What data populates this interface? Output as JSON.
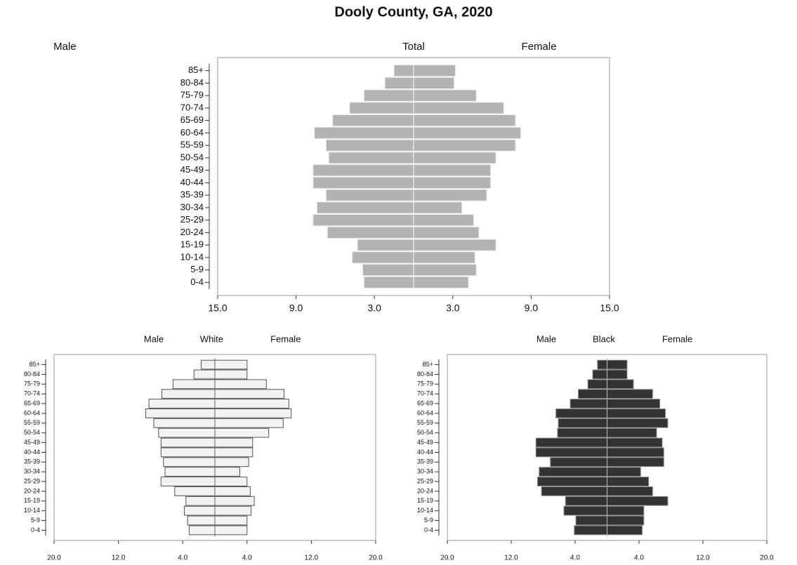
{
  "chart_data": [
    {
      "type": "pyramid",
      "title": "Dooly County, GA, 2020",
      "subtitle": "Total",
      "categories": [
        "85+",
        "80-84",
        "75-79",
        "70-74",
        "65-69",
        "60-64",
        "55-59",
        "50-54",
        "45-49",
        "40-44",
        "35-39",
        "30-34",
        "25-29",
        "20-24",
        "15-19",
        "10-14",
        "5-9",
        "0-4"
      ],
      "series": [
        {
          "name": "Male",
          "color": "#b3b3b3",
          "values": [
            1.5,
            2.2,
            3.8,
            4.9,
            6.2,
            7.6,
            6.7,
            6.5,
            7.7,
            7.7,
            6.7,
            7.4,
            7.7,
            6.6,
            4.3,
            4.7,
            3.9,
            3.8
          ]
        },
        {
          "name": "Female",
          "color": "#b3b3b3",
          "values": [
            3.2,
            3.1,
            4.8,
            6.9,
            7.8,
            8.2,
            7.8,
            6.3,
            5.9,
            5.9,
            5.6,
            3.7,
            4.6,
            5.0,
            6.3,
            4.7,
            4.8,
            4.2
          ]
        }
      ],
      "xlim": [
        -15,
        15
      ],
      "xticks": [
        {
          "value": -15,
          "label": "15.0"
        },
        {
          "value": -9,
          "label": "9.0"
        },
        {
          "value": -3,
          "label": "3.0"
        },
        {
          "value": 3,
          "label": "3.0"
        },
        {
          "value": 9,
          "label": "9.0"
        },
        {
          "value": 15,
          "label": "15.0"
        }
      ]
    },
    {
      "type": "pyramid",
      "subtitle": "White",
      "categories": [
        "85+",
        "80-84",
        "75-79",
        "70-74",
        "65-69",
        "60-64",
        "55-59",
        "50-54",
        "45-49",
        "40-44",
        "35-39",
        "30-34",
        "25-29",
        "20-24",
        "15-19",
        "10-14",
        "5-9",
        "0-4"
      ],
      "series": [
        {
          "name": "Male",
          "color": "#f2f2f2",
          "values": [
            1.7,
            2.6,
            5.2,
            6.6,
            8.2,
            8.6,
            7.6,
            7.0,
            6.7,
            6.7,
            6.4,
            6.2,
            6.7,
            5.0,
            3.6,
            3.8,
            3.4,
            3.2
          ]
        },
        {
          "name": "Female",
          "color": "#f2f2f2",
          "values": [
            4.0,
            4.0,
            6.4,
            8.6,
            9.2,
            9.5,
            8.5,
            6.7,
            4.7,
            4.7,
            4.2,
            3.1,
            4.0,
            4.4,
            4.9,
            4.5,
            4.0,
            4.0
          ]
        }
      ],
      "xlim": [
        -20,
        20
      ],
      "xticks": [
        {
          "value": -20,
          "label": "20.0"
        },
        {
          "value": -12,
          "label": "12.0"
        },
        {
          "value": -4,
          "label": "4.0"
        },
        {
          "value": 4,
          "label": "4.0"
        },
        {
          "value": 12,
          "label": "12.0"
        },
        {
          "value": 20,
          "label": "20.0"
        }
      ]
    },
    {
      "type": "pyramid",
      "subtitle": "Black",
      "categories": [
        "85+",
        "80-84",
        "75-79",
        "70-74",
        "65-69",
        "60-64",
        "55-59",
        "50-54",
        "45-49",
        "40-44",
        "35-39",
        "30-34",
        "25-29",
        "20-24",
        "15-19",
        "10-14",
        "5-9",
        "0-4"
      ],
      "series": [
        {
          "name": "Male",
          "color": "#333333",
          "values": [
            1.2,
            1.8,
            2.4,
            3.6,
            4.6,
            6.4,
            6.1,
            6.2,
            8.9,
            8.9,
            7.1,
            8.5,
            8.7,
            8.2,
            5.2,
            5.4,
            3.9,
            4.1
          ]
        },
        {
          "name": "Female",
          "color": "#333333",
          "values": [
            2.5,
            2.5,
            3.3,
            5.7,
            6.6,
            7.3,
            7.6,
            6.2,
            6.9,
            7.1,
            7.1,
            4.2,
            5.2,
            5.7,
            7.6,
            4.6,
            4.6,
            4.4
          ]
        }
      ],
      "xlim": [
        -20,
        20
      ],
      "xticks": [
        {
          "value": -20,
          "label": "20.0"
        },
        {
          "value": -12,
          "label": "12.0"
        },
        {
          "value": -4,
          "label": "4.0"
        },
        {
          "value": 4,
          "label": "4.0"
        },
        {
          "value": 12,
          "label": "12.0"
        },
        {
          "value": 20,
          "label": "20.0"
        }
      ]
    }
  ]
}
